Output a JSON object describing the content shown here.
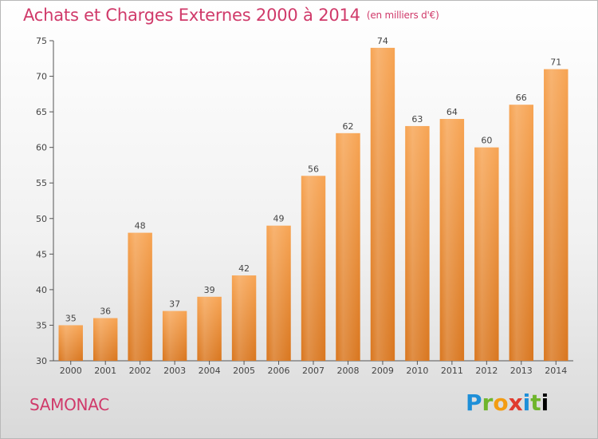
{
  "header": {
    "title": "Achats et Charges Externes 2000 à 2014",
    "unit": "(en milliers d'€)"
  },
  "footer": {
    "town": "SAMONAC",
    "brand_letters": [
      "P",
      "r",
      "o",
      "x",
      "i",
      "t",
      "i"
    ]
  },
  "colors": {
    "title": "#d03a6a",
    "bar_top": "#f7a453",
    "bar_bottom": "#d9761e"
  },
  "chart_data": {
    "type": "bar",
    "title": "Achats et Charges Externes 2000 à 2014",
    "subtitle": "(en milliers d'€)",
    "xlabel": "",
    "ylabel": "",
    "categories": [
      "2000",
      "2001",
      "2002",
      "2003",
      "2004",
      "2005",
      "2006",
      "2007",
      "2008",
      "2009",
      "2010",
      "2011",
      "2012",
      "2013",
      "2014"
    ],
    "values": [
      35,
      36,
      48,
      37,
      39,
      42,
      49,
      56,
      62,
      74,
      63,
      64,
      60,
      66,
      71
    ],
    "ylim": [
      30,
      75
    ],
    "yticks": [
      30,
      35,
      40,
      45,
      50,
      55,
      60,
      65,
      70,
      75
    ],
    "grid": false,
    "legend": "none"
  }
}
